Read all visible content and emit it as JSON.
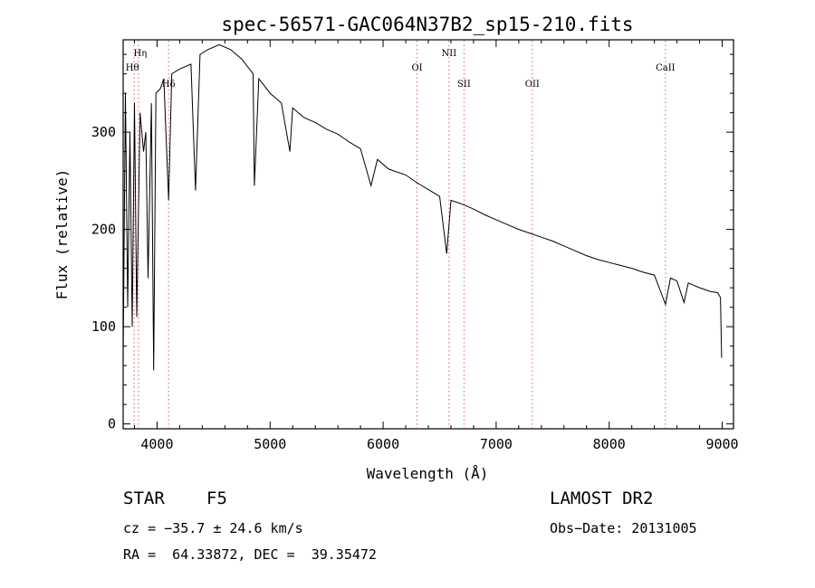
{
  "chart_data": {
    "type": "line",
    "title": "spec-56571-GAC064N37B2_sp15-210.fits",
    "xlabel": "Wavelength (Å)",
    "ylabel": "Flux (relative)",
    "xlim": [
      3700,
      9100
    ],
    "ylim": [
      -5,
      395
    ],
    "xticks": [
      4000,
      5000,
      6000,
      7000,
      8000,
      9000
    ],
    "yticks": [
      0,
      100,
      200,
      300
    ],
    "grid": false,
    "series": [
      {
        "x": [
          3700,
          3720,
          3740,
          3760,
          3780,
          3800,
          3820,
          3850,
          3880,
          3900,
          3920,
          3950,
          3970,
          3990,
          4030,
          4060,
          4102,
          4130,
          4200,
          4300,
          4340,
          4380,
          4450,
          4550,
          4650,
          4750,
          4850,
          4861,
          4900,
          5000,
          5100,
          5175,
          5200,
          5300,
          5400,
          5500,
          5600,
          5700,
          5800,
          5893,
          5950,
          6050,
          6200,
          6300,
          6400,
          6500,
          6563,
          6600,
          6700,
          6800,
          6900,
          7000,
          7100,
          7200,
          7300,
          7400,
          7500,
          7600,
          7700,
          7800,
          7900,
          8000,
          8100,
          8200,
          8300,
          8400,
          8498,
          8542,
          8600,
          8662,
          8700,
          8800,
          8900,
          8960,
          8985,
          8995
        ],
        "y": [
          70,
          340,
          120,
          300,
          100,
          330,
          110,
          320,
          280,
          300,
          150,
          330,
          55,
          340,
          345,
          355,
          230,
          360,
          365,
          370,
          240,
          380,
          385,
          390,
          385,
          375,
          360,
          245,
          355,
          340,
          330,
          280,
          325,
          315,
          310,
          303,
          298,
          290,
          283,
          245,
          272,
          262,
          256,
          248,
          241,
          234,
          175,
          230,
          226,
          221,
          215,
          210,
          205,
          200,
          196,
          192,
          188,
          183,
          178,
          173,
          169,
          166,
          163,
          160,
          156,
          153,
          123,
          150,
          147,
          125,
          145,
          140,
          136,
          135,
          130,
          68
        ]
      }
    ],
    "line_markers": [
      {
        "label": "Hη",
        "x": 3835
      },
      {
        "label": "Hθ",
        "x": 3797
      },
      {
        "label": "Hδ",
        "x": 4102
      },
      {
        "label": "OI",
        "x": 6300
      },
      {
        "label": "NII",
        "x": 6583
      },
      {
        "label": "SII",
        "x": 6716
      },
      {
        "label": "OII",
        "x": 7320
      },
      {
        "label": "CaII",
        "x": 8498
      }
    ]
  },
  "info": {
    "object_class": "STAR",
    "subclass": "F5",
    "survey": "LAMOST DR2",
    "cz": "cz = −35.7 ± 24.6 km/s",
    "obs_date": "Obs−Date: 20131005",
    "coords": "RA =  64.33872, DEC =  39.35472"
  },
  "colors": {
    "spectrum": "#000000",
    "marker_line": "#e06060",
    "frame": "#000000"
  }
}
